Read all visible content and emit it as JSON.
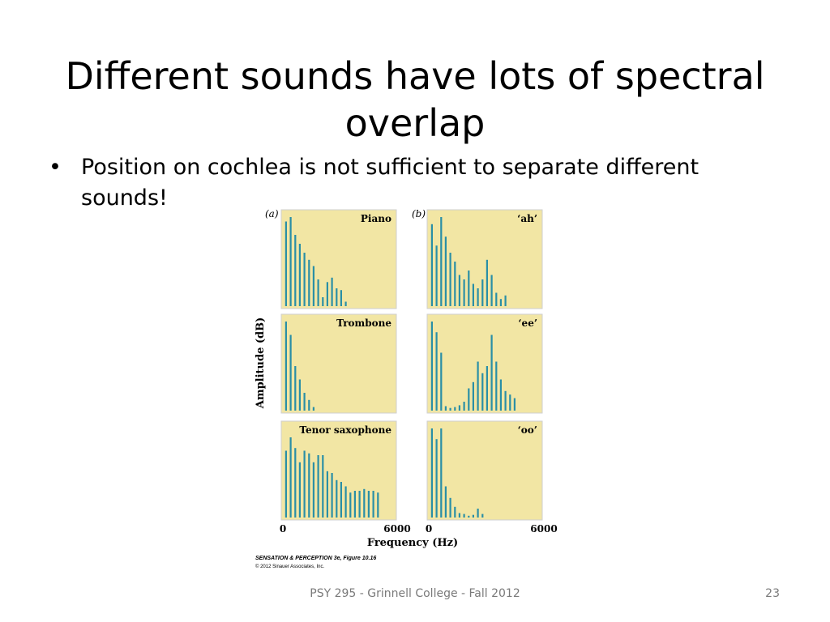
{
  "slide": {
    "title": "Different sounds have lots of spectral overlap",
    "bullets": [
      "Position on cochlea is not sufficient to separate different sounds!"
    ],
    "footer": "PSY 295 - Grinnell College - Fall 2012",
    "page_number": "23"
  },
  "figure": {
    "column_labels": [
      "(a)",
      "(b)"
    ],
    "ylabel": "Amplitude (dB)",
    "xlabel": "Frequency (Hz)",
    "x_ticks": [
      "0",
      "6000",
      "0",
      "6000"
    ],
    "credit_title": "SENSATION & PERCEPTION 3e, Figure 10.16",
    "credit_copyright": "© 2012 Sinauer Associates, Inc.",
    "colors": {
      "panel_bg": "#f2e6a4",
      "bar": "#2a8fa6",
      "frame": "#cfcfcf"
    }
  },
  "chart_data": [
    {
      "type": "bar",
      "title": "Piano",
      "xlim": [
        0,
        6000
      ],
      "x": [
        125,
        375,
        625,
        875,
        1125,
        1375,
        1625,
        1875,
        2125,
        2375,
        2625,
        2875,
        3125,
        3375
      ],
      "values": [
        95,
        100,
        80,
        70,
        60,
        52,
        45,
        30,
        10,
        27,
        32,
        20,
        18,
        5
      ]
    },
    {
      "type": "bar",
      "title": "Trombone",
      "xlim": [
        0,
        6000
      ],
      "x": [
        125,
        375,
        625,
        875,
        1125,
        1375,
        1625
      ],
      "values": [
        100,
        85,
        50,
        35,
        20,
        12,
        4
      ]
    },
    {
      "type": "bar",
      "title": "Tenor saxophone",
      "xlim": [
        0,
        6000
      ],
      "x": [
        125,
        375,
        625,
        875,
        1125,
        1375,
        1625,
        1875,
        2125,
        2375,
        2625,
        2875,
        3125,
        3375,
        3625,
        3875,
        4125,
        4375,
        4625,
        4875,
        5125
      ],
      "values": [
        75,
        90,
        78,
        62,
        75,
        72,
        62,
        70,
        70,
        52,
        50,
        42,
        40,
        35,
        28,
        30,
        30,
        32,
        30,
        30,
        28
      ]
    },
    {
      "type": "bar",
      "title": "‘ah’",
      "xlim": [
        0,
        6000
      ],
      "x": [
        125,
        375,
        625,
        875,
        1125,
        1375,
        1625,
        1875,
        2125,
        2375,
        2625,
        2875,
        3125,
        3375,
        3625,
        3875,
        4125
      ],
      "values": [
        92,
        68,
        100,
        78,
        60,
        50,
        35,
        30,
        40,
        25,
        20,
        30,
        52,
        35,
        15,
        8,
        12
      ]
    },
    {
      "type": "bar",
      "title": "‘ee’",
      "xlim": [
        0,
        6000
      ],
      "x": [
        125,
        375,
        625,
        875,
        1125,
        1375,
        1625,
        1875,
        2125,
        2375,
        2625,
        2875,
        3125,
        3375,
        3625,
        3875,
        4125,
        4375,
        4625
      ],
      "values": [
        100,
        88,
        65,
        5,
        3,
        4,
        6,
        10,
        25,
        32,
        55,
        42,
        50,
        85,
        55,
        35,
        22,
        18,
        14
      ]
    },
    {
      "type": "bar",
      "title": "‘oo’",
      "xlim": [
        0,
        6000
      ],
      "x": [
        125,
        375,
        625,
        875,
        1125,
        1375,
        1625,
        1875,
        2125,
        2375,
        2625,
        2875
      ],
      "values": [
        100,
        88,
        100,
        35,
        22,
        12,
        5,
        4,
        2,
        3,
        10,
        4
      ]
    }
  ]
}
